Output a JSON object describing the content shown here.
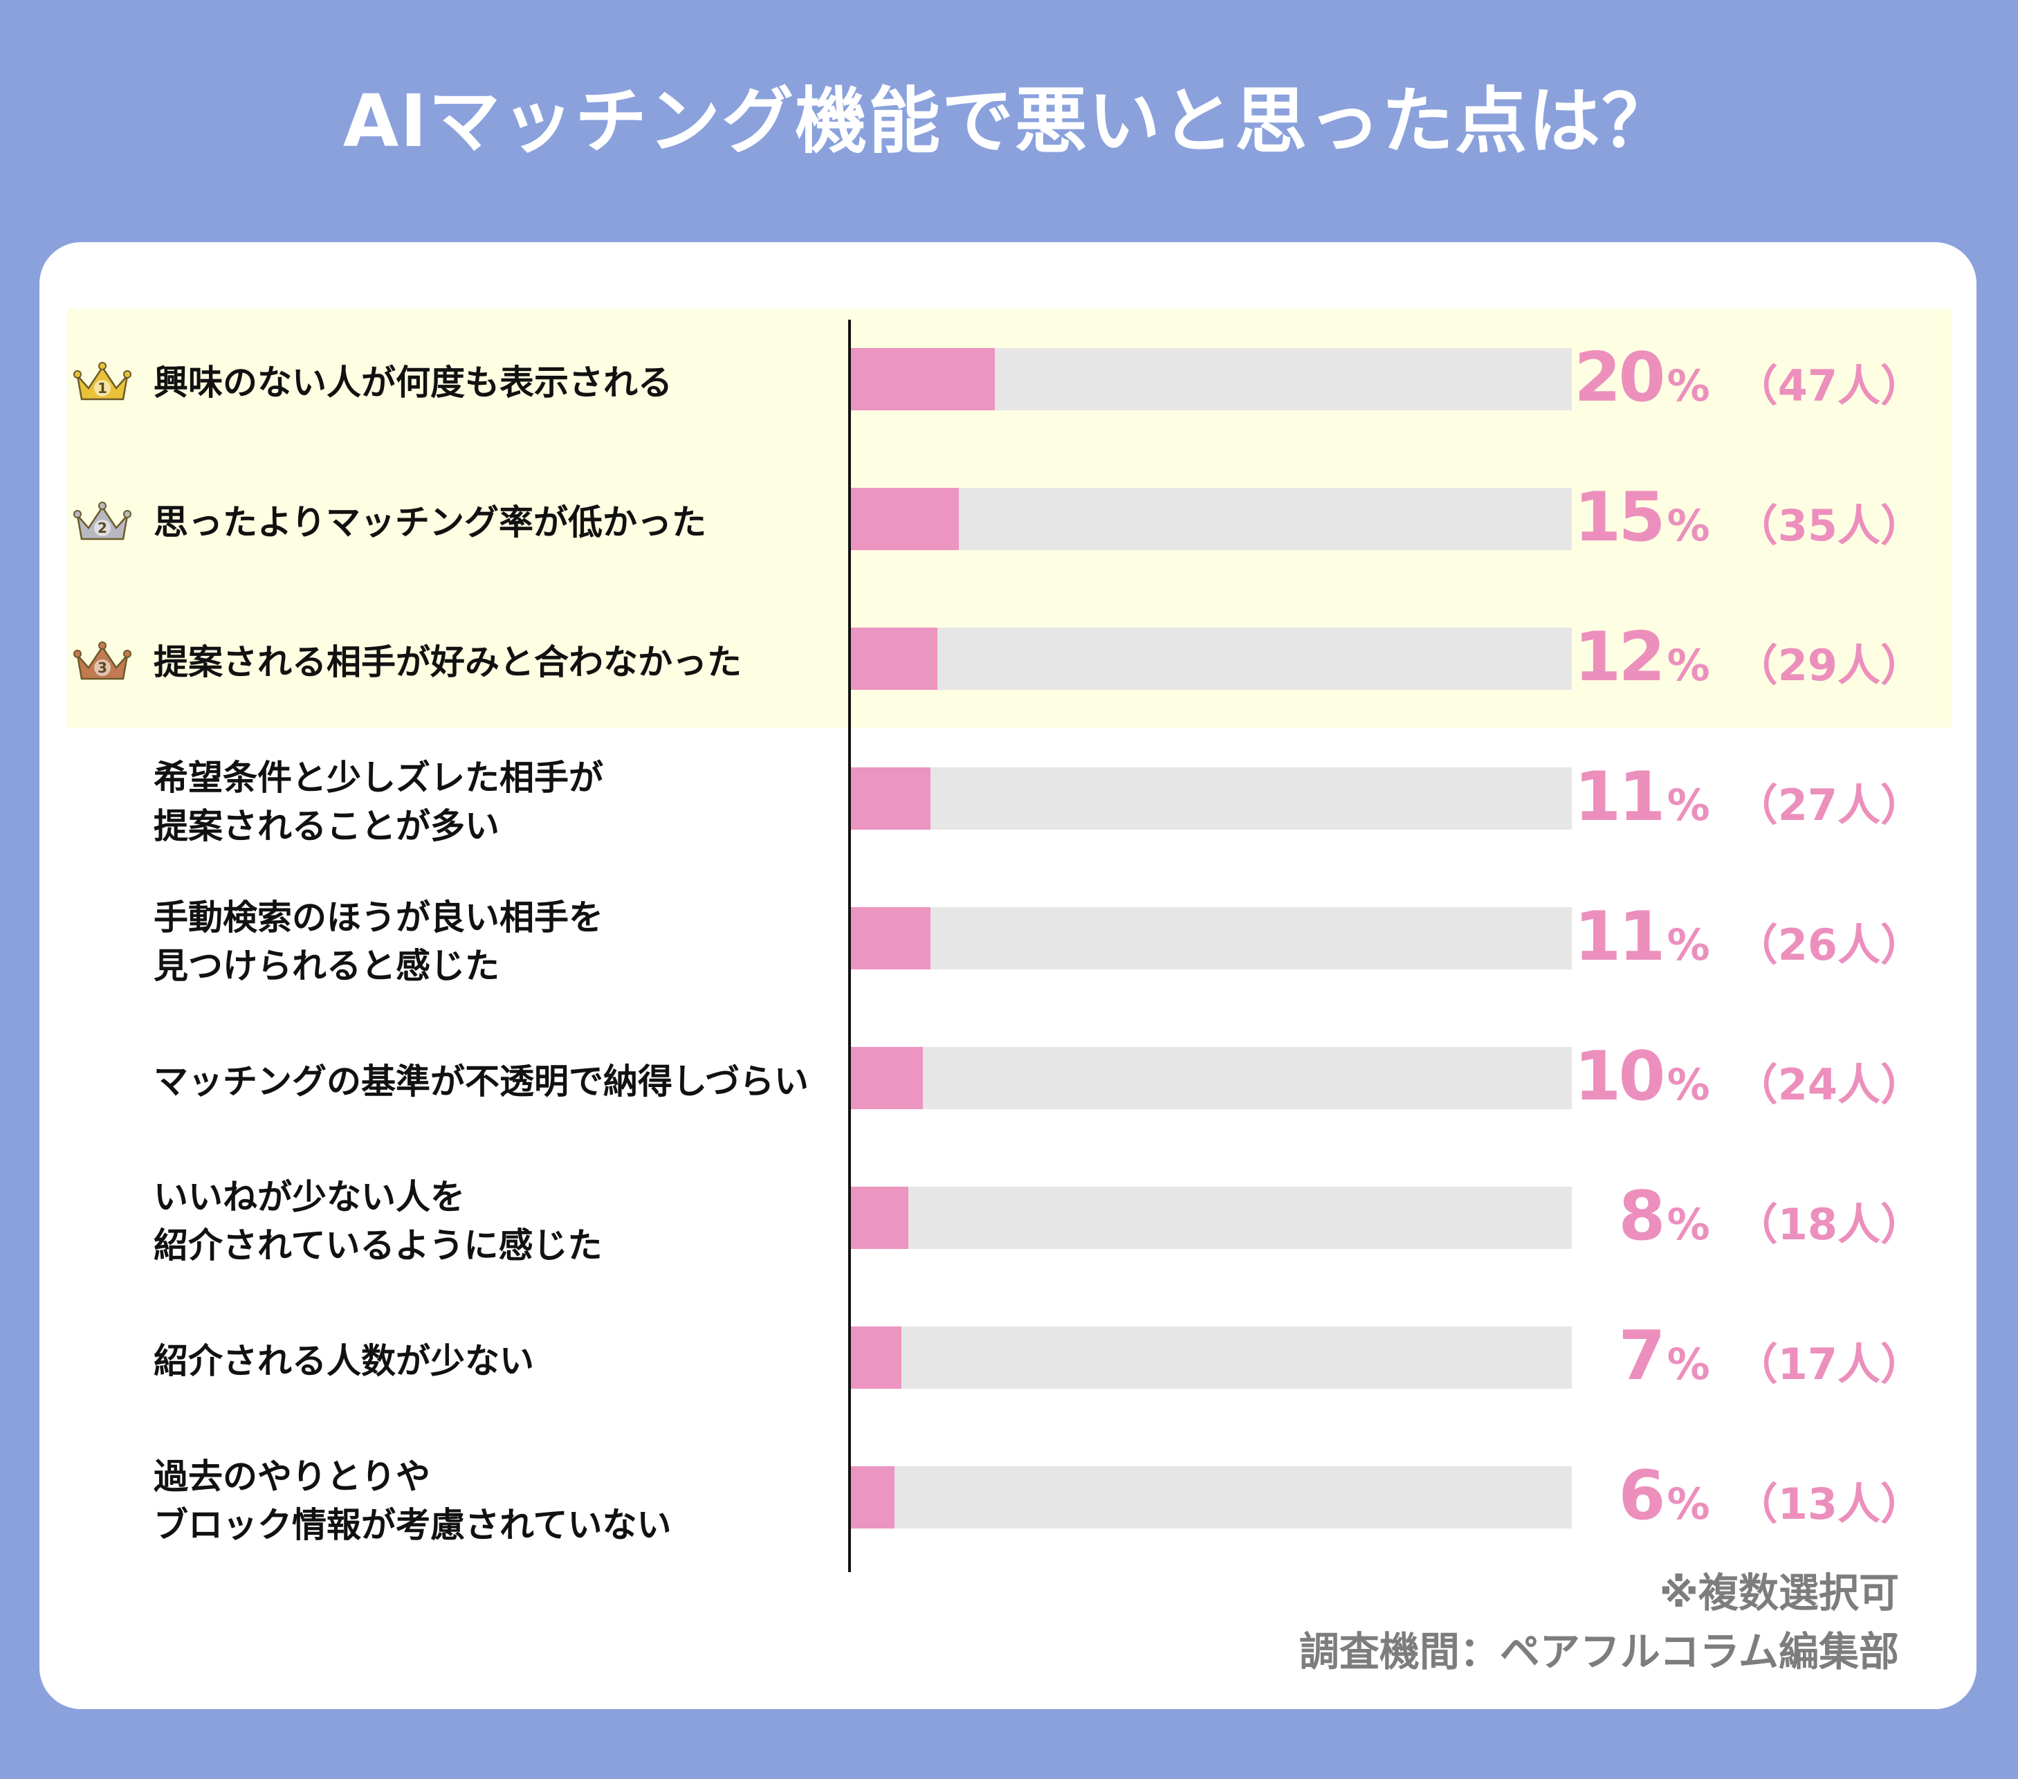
{
  "title": "AIマッチング機能で悪いと思った点は？",
  "footnote": "※複数選択可",
  "source": "調査機間：ペアフルコラム編集部",
  "colors": {
    "background": "#8aa1dc",
    "bar": "#ec95c0",
    "track": "#e6e6e6",
    "highlight": "#fefee2",
    "value_text": "#ec8fbd",
    "gold_crown": "#e9c23a",
    "silver_crown": "#b8b8c2",
    "bronze_crown": "#c27a52"
  },
  "chart_data": {
    "type": "bar",
    "orientation": "horizontal",
    "title": "AIマッチング機能で悪いと思った点は？",
    "xlim": [
      0,
      100
    ],
    "unit": "%",
    "categories": [
      {
        "lines": [
          "興味のない人が何度も表示される"
        ],
        "value": 20,
        "percent_label": "20",
        "count_label": "（47人）",
        "rank": "1",
        "crown": "gold-crown-icon"
      },
      {
        "lines": [
          "思ったよりマッチング率が低かった"
        ],
        "value": 15,
        "percent_label": "15",
        "count_label": "（35人）",
        "rank": "2",
        "crown": "silver-crown-icon"
      },
      {
        "lines": [
          "提案される相手が好みと合わなかった"
        ],
        "value": 12,
        "percent_label": "12",
        "count_label": "（29人）",
        "rank": "3",
        "crown": "bronze-crown-icon"
      },
      {
        "lines": [
          "希望条件と少しズレた相手が",
          "提案されることが多い"
        ],
        "value": 11,
        "percent_label": "11",
        "count_label": "（27人）"
      },
      {
        "lines": [
          "手動検索のほうが良い相手を",
          "見つけられると感じた"
        ],
        "value": 11,
        "percent_label": "11",
        "count_label": "（26人）"
      },
      {
        "lines": [
          "マッチングの基準が不透明で納得しづらい"
        ],
        "value": 10,
        "percent_label": "10",
        "count_label": "（24人）"
      },
      {
        "lines": [
          "いいねが少ない人を",
          "紹介されているように感じた"
        ],
        "value": 8,
        "percent_label": "8",
        "count_label": "（18人）"
      },
      {
        "lines": [
          "紹介される人数が少ない"
        ],
        "value": 7,
        "percent_label": "7",
        "count_label": "（17人）"
      },
      {
        "lines": [
          "過去のやりとりや",
          "ブロック情報が考慮されていない"
        ],
        "value": 6,
        "percent_label": "6",
        "count_label": "（13人）"
      }
    ]
  }
}
